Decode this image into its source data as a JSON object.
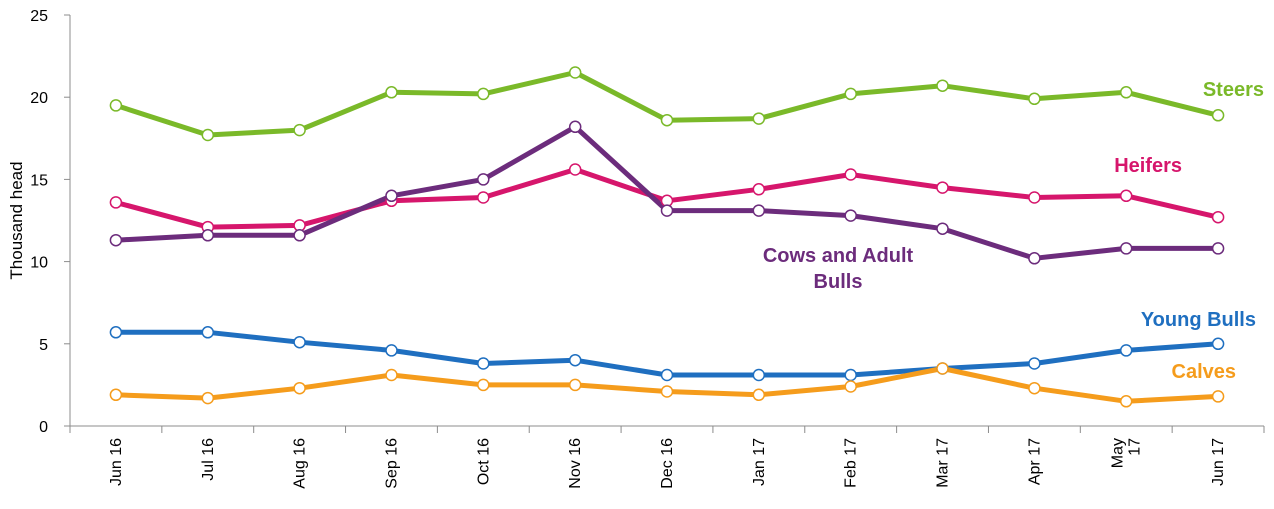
{
  "chart_data": {
    "type": "line",
    "title": "",
    "xlabel": "",
    "ylabel": "Thousand head",
    "ylim": [
      0,
      25
    ],
    "yticks": [
      0,
      5,
      10,
      15,
      20,
      25
    ],
    "grid": false,
    "categories": [
      [
        "Jun 16"
      ],
      [
        "Jul 16"
      ],
      [
        "Aug 16"
      ],
      [
        "Sep 16"
      ],
      [
        "Oct 16"
      ],
      [
        "Nov 16"
      ],
      [
        "Dec 16"
      ],
      [
        "Jan 17"
      ],
      [
        "Feb 17"
      ],
      [
        "Mar 17"
      ],
      [
        "Apr 17"
      ],
      [
        "May",
        "17"
      ],
      [
        "Jun 17"
      ]
    ],
    "series": [
      {
        "name": "Steers",
        "color": "#7ab929",
        "values": [
          19.5,
          17.7,
          18.0,
          20.3,
          20.2,
          21.5,
          18.6,
          18.7,
          20.2,
          20.7,
          19.9,
          20.3,
          18.9
        ]
      },
      {
        "name": "Heifers",
        "color": "#d6166c",
        "values": [
          13.6,
          12.1,
          12.2,
          13.7,
          13.9,
          15.6,
          13.7,
          14.4,
          15.3,
          14.5,
          13.9,
          14.0,
          12.7
        ]
      },
      {
        "name": "Cows and Adult Bulls",
        "label_lines": [
          "Cows and Adult",
          "Bulls"
        ],
        "color": "#6c2c7c",
        "values": [
          11.3,
          11.6,
          11.6,
          14.0,
          15.0,
          18.2,
          13.1,
          13.1,
          12.8,
          12.0,
          10.2,
          10.8,
          10.8
        ]
      },
      {
        "name": "Young Bulls",
        "color": "#1f6fc0",
        "values": [
          5.7,
          5.7,
          5.1,
          4.6,
          3.8,
          4.0,
          3.1,
          3.1,
          3.1,
          3.5,
          3.8,
          4.6,
          5.0
        ]
      },
      {
        "name": "Calves",
        "color": "#f59c1c",
        "values": [
          1.9,
          1.7,
          2.3,
          3.1,
          2.5,
          2.5,
          2.1,
          1.9,
          2.4,
          3.5,
          2.3,
          1.5,
          1.8
        ]
      }
    ]
  }
}
